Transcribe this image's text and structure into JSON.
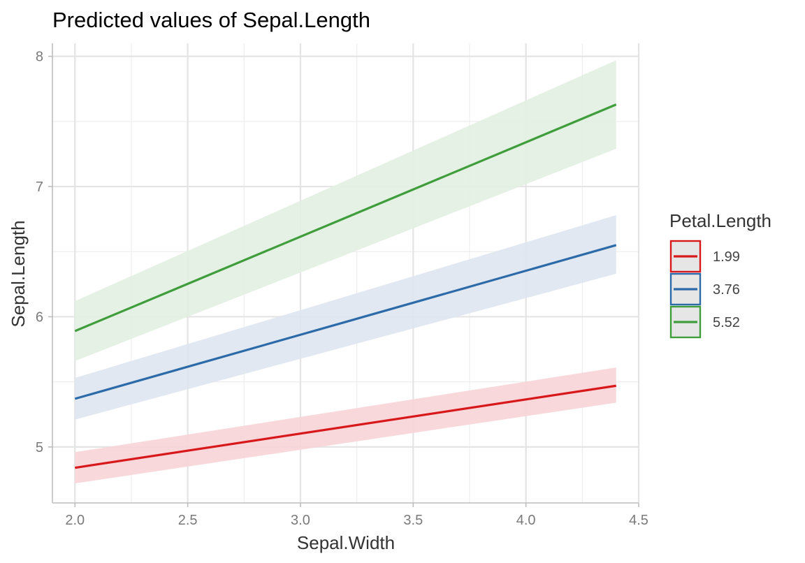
{
  "chart_data": {
    "type": "line",
    "title": "Predicted values of Sepal.Length",
    "xlabel": "Sepal.Width",
    "ylabel": "Sepal.Length",
    "xlim": [
      1.9,
      4.5
    ],
    "ylim": [
      4.57,
      8.1
    ],
    "x_ticks": [
      2.0,
      2.5,
      3.0,
      3.5,
      4.0,
      4.5
    ],
    "x_tick_labels": [
      "2.0",
      "2.5",
      "3.0",
      "3.5",
      "4.0",
      "4.5"
    ],
    "y_ticks": [
      5,
      6,
      7,
      8
    ],
    "y_tick_labels": [
      "5",
      "6",
      "7",
      "8"
    ],
    "grid": true,
    "legend": {
      "title": "Petal.Length",
      "position": "right"
    },
    "series": [
      {
        "name": "1.99",
        "color": "#d7191c",
        "fill": "#f8d4d8",
        "x": [
          2.0,
          4.4
        ],
        "y": [
          4.84,
          5.47
        ],
        "ci_low": [
          4.72,
          5.34
        ],
        "ci_high": [
          4.96,
          5.61
        ]
      },
      {
        "name": "3.76",
        "color": "#2c6aa8",
        "fill": "#dee6f1",
        "x": [
          2.0,
          4.4
        ],
        "y": [
          5.37,
          6.55
        ],
        "ci_low": [
          5.21,
          6.33
        ],
        "ci_high": [
          5.53,
          6.78
        ]
      },
      {
        "name": "5.52",
        "color": "#3f9d3c",
        "fill": "#e1f0e1",
        "x": [
          2.0,
          4.4
        ],
        "y": [
          5.89,
          7.63
        ],
        "ci_low": [
          5.66,
          7.29
        ],
        "ci_high": [
          6.12,
          7.97
        ]
      }
    ]
  }
}
